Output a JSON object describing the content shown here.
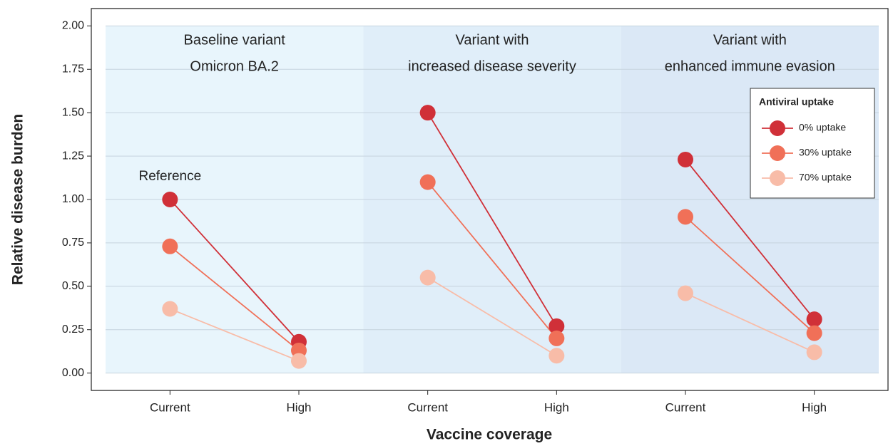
{
  "chart_data": {
    "type": "line",
    "ylabel": "Relative disease burden",
    "xlabel": "Vaccine coverage",
    "ylim": [
      -0.1,
      2.1
    ],
    "yticks": [
      {
        "value": 0,
        "label": "0.00"
      },
      {
        "value": 0.25,
        "label": "0.25"
      },
      {
        "value": 0.5,
        "label": "0.50"
      },
      {
        "value": 0.75,
        "label": "0.75"
      },
      {
        "value": 1,
        "label": "1.00"
      },
      {
        "value": 1.25,
        "label": "1.25"
      },
      {
        "value": 1.5,
        "label": "1.50"
      },
      {
        "value": 1.75,
        "label": "1.75"
      },
      {
        "value": 2,
        "label": "2.00"
      }
    ],
    "grid": true,
    "legend_title": "Antiviral uptake",
    "legend_loc": "upper right",
    "series": [
      {
        "name": "0% uptake",
        "color": "#d03038"
      },
      {
        "name": "30% uptake",
        "color": "#f07058"
      },
      {
        "name": "70% uptake",
        "color": "#f8bca8"
      }
    ],
    "panels": [
      {
        "title": [
          "Baseline variant",
          "Omicron BA.2"
        ],
        "background": "#e8f5fc",
        "categories": [
          "Current",
          "High"
        ],
        "annotation": "Reference",
        "series": [
          {
            "values": [
              1.0,
              0.18
            ]
          },
          {
            "values": [
              0.73,
              0.13
            ]
          },
          {
            "values": [
              0.37,
              0.07
            ]
          }
        ]
      },
      {
        "title": [
          "Variant with",
          "increased disease severity"
        ],
        "background": "#e0eef9",
        "categories": [
          "Current",
          "High"
        ],
        "series": [
          {
            "values": [
              1.5,
              0.27
            ]
          },
          {
            "values": [
              1.1,
              0.2
            ]
          },
          {
            "values": [
              0.55,
              0.1
            ]
          }
        ]
      },
      {
        "title": [
          "Variant with",
          "enhanced immune evasion"
        ],
        "background": "#dbe8f6",
        "categories": [
          "Current",
          "High"
        ],
        "series": [
          {
            "values": [
              1.23,
              0.31
            ]
          },
          {
            "values": [
              0.9,
              0.23
            ]
          },
          {
            "values": [
              0.46,
              0.12
            ]
          }
        ]
      }
    ]
  }
}
